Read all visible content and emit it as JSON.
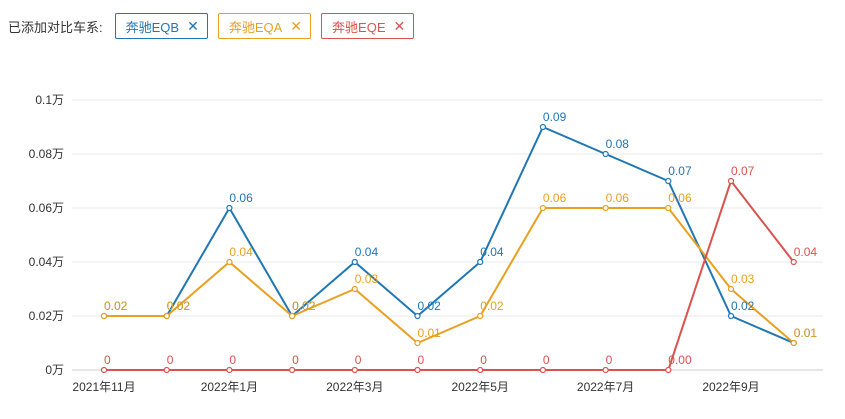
{
  "header": {
    "label": "已添加对比车系:",
    "tags": [
      {
        "name": "奔驰EQB",
        "color": "#1f77b4",
        "close": "✕"
      },
      {
        "name": "奔驰EQA",
        "color": "#e8a020",
        "close": "✕"
      },
      {
        "name": "奔驰EQE",
        "color": "#d9534f",
        "close": "✕"
      }
    ]
  },
  "chart_data": {
    "type": "line",
    "ylim": [
      0,
      0.1
    ],
    "y_ticks": [
      {
        "value": 0,
        "label": "0万"
      },
      {
        "value": 0.02,
        "label": "0.02万"
      },
      {
        "value": 0.04,
        "label": "0.04万"
      },
      {
        "value": 0.06,
        "label": "0.06万"
      },
      {
        "value": 0.08,
        "label": "0.08万"
      },
      {
        "value": 0.1,
        "label": "0.1万"
      }
    ],
    "categories": [
      "2021-11",
      "2021-12",
      "2022-01",
      "2022-02",
      "2022-03",
      "2022-04",
      "2022-05",
      "2022-06",
      "2022-07",
      "2022-08",
      "2022-09",
      "2022-10"
    ],
    "x_tick_labels": [
      "2021年11月",
      "",
      "2022年1月",
      "",
      "2022年3月",
      "",
      "2022年5月",
      "",
      "2022年7月",
      "",
      "2022年9月",
      ""
    ],
    "grid": true,
    "series": [
      {
        "name": "奔驰EQB",
        "color": "#1f77b4",
        "values": [
          0.02,
          0.02,
          0.06,
          0.02,
          0.04,
          0.02,
          0.04,
          0.09,
          0.08,
          0.07,
          0.02,
          0.01
        ],
        "labels": [
          "0.02",
          "0.02",
          "0.06",
          "0.02",
          "0.04",
          "0.02",
          "0.04",
          "0.09",
          "0.08",
          "0.07",
          "0.02",
          "0.01"
        ]
      },
      {
        "name": "奔驰EQA",
        "color": "#e8a020",
        "values": [
          0.02,
          0.02,
          0.04,
          0.02,
          0.03,
          0.01,
          0.02,
          0.06,
          0.06,
          0.06,
          0.03,
          0.01
        ],
        "labels": [
          "0.02",
          "0.02",
          "0.04",
          "0.02",
          "0.03",
          "0.01",
          "0.02",
          "0.06",
          "0.06",
          "0.06",
          "0.03",
          "0.01"
        ]
      },
      {
        "name": "奔驰EQE",
        "color": "#d9534f",
        "values": [
          0,
          0,
          0,
          0,
          0,
          0,
          0,
          0,
          0,
          0,
          0.07,
          0.04
        ],
        "labels": [
          "0",
          "0",
          "0",
          "0",
          "0",
          "0",
          "0",
          "0",
          "0",
          "0.00",
          "0.07",
          "0.04"
        ]
      }
    ]
  }
}
